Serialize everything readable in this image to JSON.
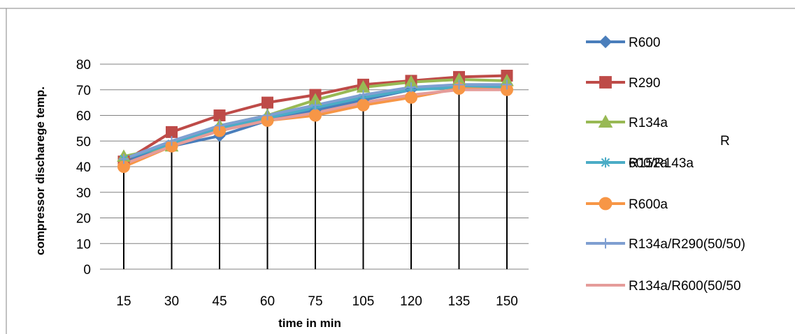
{
  "chart_data": {
    "type": "line",
    "title": "",
    "xlabel": "time in min",
    "ylabel": "compressor discharege temp.",
    "categories": [
      "15",
      "30",
      "45",
      "60",
      "75",
      "105",
      "120",
      "135",
      "150"
    ],
    "ylim": [
      0,
      80
    ],
    "yticks": [
      0,
      10,
      20,
      30,
      40,
      50,
      60,
      70,
      80
    ],
    "grid": "horizontal",
    "drop_lines": true,
    "legend": "right",
    "series": [
      {
        "name": "R600",
        "color": "#4a7ebb",
        "marker": "diamond",
        "values": [
          42,
          48,
          52,
          58,
          62,
          66,
          70,
          72,
          72
        ]
      },
      {
        "name": "R290",
        "color": "#be4b48",
        "marker": "square",
        "values": [
          42,
          53.5,
          60,
          65,
          68,
          72,
          73.5,
          75,
          75.5
        ]
      },
      {
        "name": "R134a",
        "color": "#98b954",
        "marker": "triangle",
        "values": [
          44,
          48,
          56,
          60,
          66,
          71,
          73,
          74,
          73.5
        ]
      },
      {
        "name": "R152a",
        "color": "#4bacc6",
        "marker": "star",
        "values": [
          43,
          49,
          55,
          59,
          63,
          67,
          70,
          71,
          71
        ]
      },
      {
        "name": "R600a",
        "color": "#f79646",
        "marker": "circle",
        "values": [
          40,
          48,
          54,
          58,
          60,
          64,
          67,
          70.5,
          70
        ]
      },
      {
        "name": "R134a/R290(50/50)",
        "color": "#7f9fd1",
        "marker": "plus",
        "values": [
          43,
          50,
          56,
          60,
          64,
          68,
          71,
          72,
          72
        ]
      },
      {
        "name": "R134a/R600(50/50",
        "color": "#e59c9a",
        "marker": "none",
        "values": [
          41,
          48,
          54,
          58,
          61,
          65,
          68,
          70,
          70
        ]
      }
    ],
    "annotations": [
      {
        "text": "R"
      },
      {
        "text": "600/R143a"
      }
    ]
  }
}
